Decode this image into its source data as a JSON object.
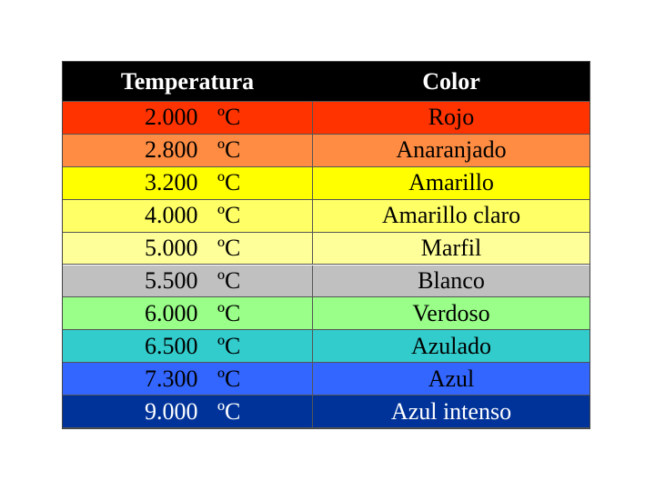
{
  "table": {
    "header": [
      "Temperatura",
      "Color"
    ],
    "rows": [
      {
        "temperature": "2.000",
        "unit": "ºC",
        "color": "Rojo",
        "fill": "#ff3300",
        "text_color": "#000000"
      },
      {
        "temperature": "2.800",
        "unit": "ºC",
        "color": "Anaranjado",
        "fill": "#ff8c42",
        "text_color": "#000000"
      },
      {
        "temperature": "3.200",
        "unit": "ºC",
        "color": "Amarillo",
        "fill": "#ffff00",
        "text_color": "#000000"
      },
      {
        "temperature": "4.000",
        "unit": "ºC",
        "color": "Amarillo claro",
        "fill": "#ffff66",
        "text_color": "#000000"
      },
      {
        "temperature": "5.000",
        "unit": "ºC",
        "color": "Marfil",
        "fill": "#ffff99",
        "text_color": "#000000"
      },
      {
        "temperature": "5.500",
        "unit": "ºC",
        "color": "Blanco",
        "fill": "#c0c0c0",
        "text_color": "#000000"
      },
      {
        "temperature": "6.000",
        "unit": "ºC",
        "color": "Verdoso",
        "fill": "#99ff88",
        "text_color": "#000000"
      },
      {
        "temperature": "6.500",
        "unit": "ºC",
        "color": "Azulado",
        "fill": "#33cccc",
        "text_color": "#000000"
      },
      {
        "temperature": "7.300",
        "unit": "ºC",
        "color": "Azul",
        "fill": "#3366ff",
        "text_color": "#000000"
      },
      {
        "temperature": "9.000",
        "unit": "ºC",
        "color": "Azul intenso",
        "fill": "#003399",
        "text_color": "#ffffff"
      }
    ]
  }
}
